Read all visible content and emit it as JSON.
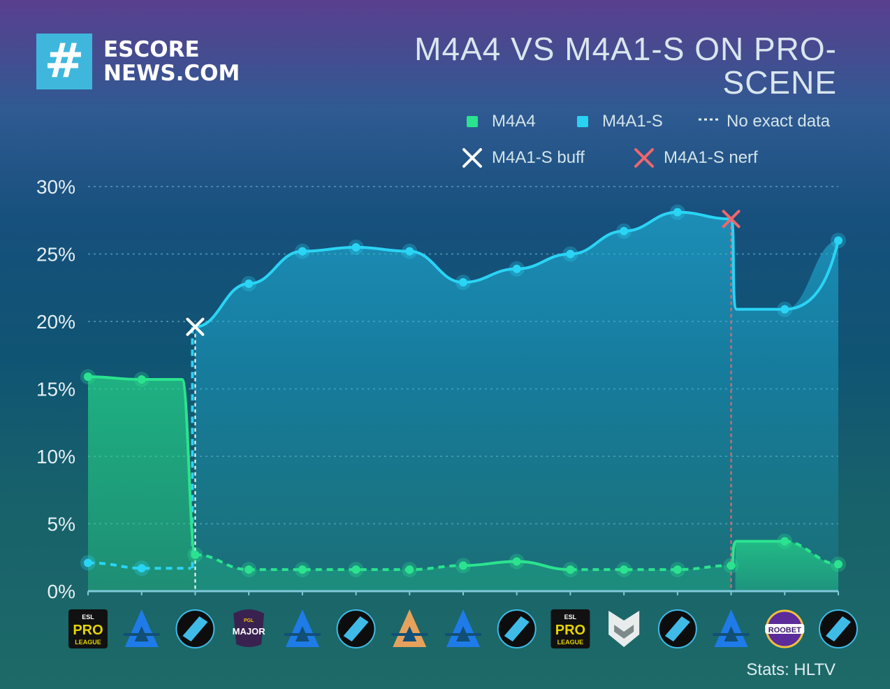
{
  "brand": {
    "logo_glyph": "#",
    "logo_line1": "ESCORE",
    "logo_line2": "NEWS.COM",
    "accent_color": "#3fb7dd"
  },
  "title": "M4A4 VS M4A1-S ON PRO-SCENE",
  "legend": {
    "m4a4": "M4A4",
    "m4a1s": "M4A1-S",
    "no_data": "No exact data",
    "buff": "M4A1-S buff",
    "nerf": "M4A1-S nerf"
  },
  "source": "Stats: HLTV",
  "tournaments": [
    {
      "icon": "esl-pro-league-icon",
      "lines": [
        "ESL",
        "PRO",
        "LEAGUE"
      ]
    },
    {
      "icon": "blast-icon",
      "lines": []
    },
    {
      "icon": "iem-icon",
      "lines": []
    },
    {
      "icon": "pgl-major-icon",
      "lines": [
        "PGL",
        "MAJOR"
      ]
    },
    {
      "icon": "blast-icon",
      "lines": []
    },
    {
      "icon": "iem-icon",
      "lines": []
    },
    {
      "icon": "blast-gold-icon",
      "lines": []
    },
    {
      "icon": "blast-icon",
      "lines": []
    },
    {
      "icon": "iem-icon",
      "lines": []
    },
    {
      "icon": "esl-pro-league-icon",
      "lines": [
        "ESL",
        "PRO",
        "LEAGUE"
      ]
    },
    {
      "icon": "shield-chevron-icon",
      "lines": []
    },
    {
      "icon": "iem-icon",
      "lines": []
    },
    {
      "icon": "blast-icon",
      "lines": []
    },
    {
      "icon": "roobet-cup-icon",
      "lines": [
        "ROOBET"
      ]
    },
    {
      "icon": "iem-icon",
      "lines": []
    }
  ],
  "chart_data": {
    "type": "line",
    "ylim": [
      0,
      30
    ],
    "yticks": [
      "0%",
      "5%",
      "10%",
      "15%",
      "20%",
      "25%",
      "30%"
    ],
    "ytick_values": [
      0,
      5,
      10,
      15,
      20,
      25,
      30
    ],
    "x_count": 15,
    "series": [
      {
        "name": "M4A4",
        "color": "#2be38f",
        "values": [
          15.9,
          15.7,
          2.7,
          1.6,
          1.6,
          1.6,
          1.6,
          1.9,
          2.2,
          1.6,
          1.6,
          1.6,
          1.9,
          3.7,
          2.0
        ]
      },
      {
        "name": "M4A1-S",
        "color": "#29d2f2",
        "values": [
          2.1,
          1.7,
          19.6,
          22.8,
          25.2,
          25.5,
          25.2,
          22.9,
          23.9,
          25.0,
          26.7,
          28.1,
          27.6,
          20.9,
          26.0
        ]
      }
    ],
    "buff_marker": {
      "x_index": 2,
      "value": 19.6,
      "color": "#ffffff"
    },
    "nerf_marker": {
      "x_index": 12,
      "value": 27.6,
      "color": "#f0676c"
    }
  }
}
